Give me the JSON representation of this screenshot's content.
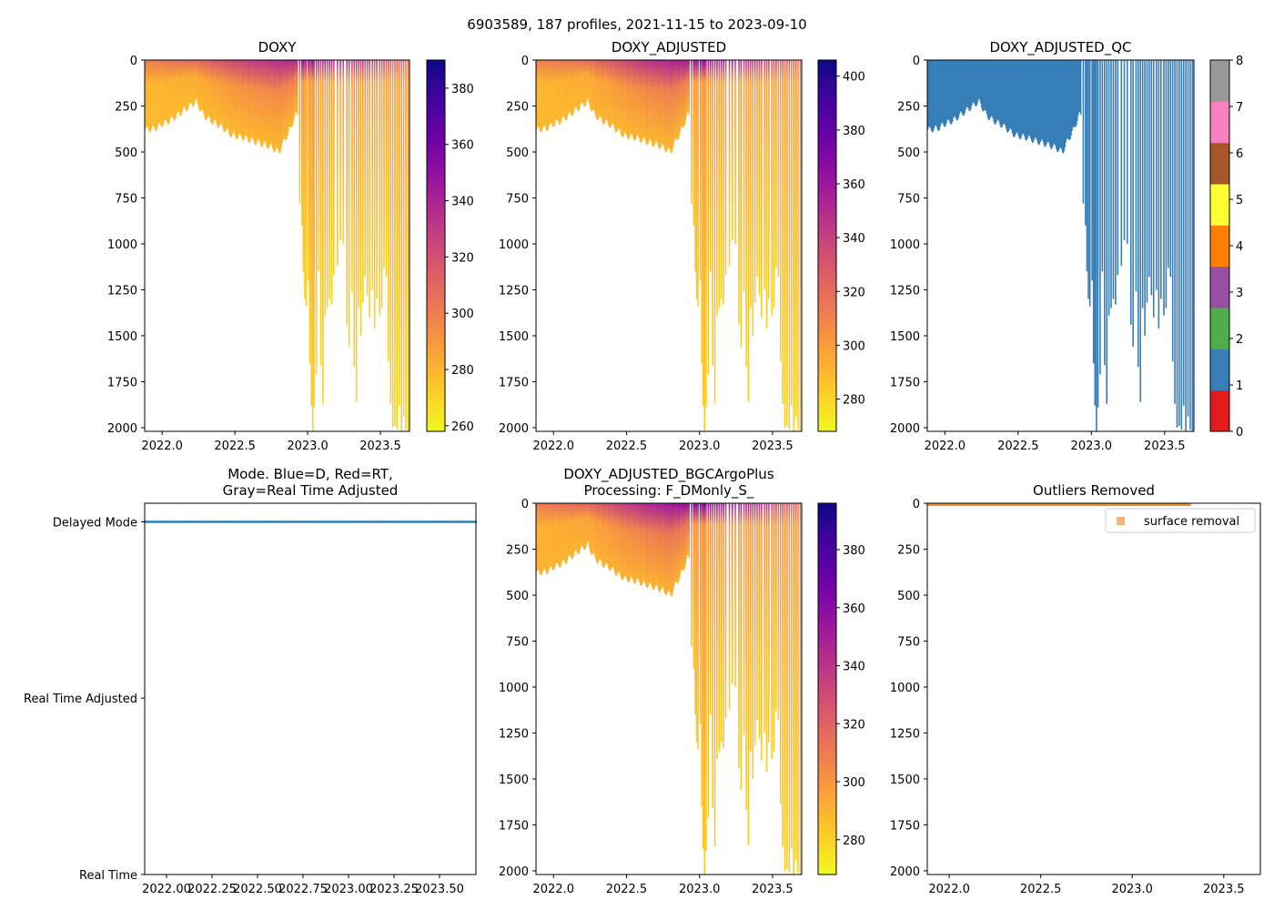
{
  "figure": {
    "suptitle": "6903589, 187 profiles, 2021-11-15 to 2023-09-10"
  },
  "colors": {
    "plasma": [
      "#0d0887",
      "#46039f",
      "#7201a8",
      "#9c179e",
      "#bd3786",
      "#d8576b",
      "#ed7953",
      "#fb9f3a",
      "#fdca26",
      "#f0f921"
    ],
    "qc_palette": [
      "#e41a1c",
      "#377eb8",
      "#4daf4a",
      "#984ea3",
      "#ff7f00",
      "#ffff33",
      "#a65628",
      "#f781bf",
      "#999999"
    ],
    "mode_marker": "#1f77b4",
    "outlier": "#f28e2b",
    "outlier_legend": "#f7b47a",
    "profile_fill": "#377eb8"
  },
  "chart_data": [
    {
      "id": "doxy",
      "type": "heatmap",
      "title": "DOXY",
      "xlim": [
        2021.88,
        2023.7
      ],
      "ylim": [
        2020,
        0
      ],
      "xticks": [
        "2022.0",
        "2022.5",
        "2023.0",
        "2023.5"
      ],
      "xtick_values": [
        2022.0,
        2022.5,
        2023.0,
        2023.5
      ],
      "yticks": [
        "0",
        "250",
        "500",
        "750",
        "1000",
        "1250",
        "1500",
        "1750",
        "2000"
      ],
      "ytick_values": [
        0,
        250,
        500,
        750,
        1000,
        1250,
        1500,
        1750,
        2000
      ],
      "colorbar": {
        "range": [
          258,
          390
        ],
        "ticks": [
          "260",
          "280",
          "300",
          "320",
          "340",
          "360",
          "380"
        ],
        "tick_values": [
          260,
          280,
          300,
          320,
          340,
          360,
          380
        ]
      },
      "surface_values": [
        300,
        310,
        330,
        340,
        330,
        300
      ],
      "deep_value": 270
    },
    {
      "id": "doxy_adjusted",
      "type": "heatmap",
      "title": "DOXY_ADJUSTED",
      "xlim": [
        2021.88,
        2023.7
      ],
      "ylim": [
        2020,
        0
      ],
      "xticks": [
        "2022.0",
        "2022.5",
        "2023.0",
        "2023.5"
      ],
      "xtick_values": [
        2022.0,
        2022.5,
        2023.0,
        2023.5
      ],
      "yticks": [
        "0",
        "250",
        "500",
        "750",
        "1000",
        "1250",
        "1500",
        "1750",
        "2000"
      ],
      "ytick_values": [
        0,
        250,
        500,
        750,
        1000,
        1250,
        1500,
        1750,
        2000
      ],
      "colorbar": {
        "range": [
          268,
          406
        ],
        "ticks": [
          "280",
          "300",
          "320",
          "340",
          "360",
          "380",
          "400"
        ],
        "tick_values": [
          280,
          300,
          320,
          340,
          360,
          380,
          400
        ]
      },
      "surface_values": [
        310,
        320,
        345,
        360,
        345,
        310
      ],
      "deep_value": 282
    },
    {
      "id": "doxy_adjusted_qc",
      "type": "heatmap",
      "title": "DOXY_ADJUSTED_QC",
      "xlim": [
        2021.88,
        2023.7
      ],
      "ylim": [
        2020,
        0
      ],
      "xticks": [
        "2022.0",
        "2022.5",
        "2023.0",
        "2023.5"
      ],
      "xtick_values": [
        2022.0,
        2022.5,
        2023.0,
        2023.5
      ],
      "yticks": [
        "0",
        "250",
        "500",
        "750",
        "1000",
        "1250",
        "1500",
        "1750",
        "2000"
      ],
      "ytick_values": [
        0,
        250,
        500,
        750,
        1000,
        1250,
        1500,
        1750,
        2000
      ],
      "colorbar": {
        "range": [
          0,
          8
        ],
        "ticks": [
          "0",
          "1",
          "2",
          "3",
          "4",
          "5",
          "6",
          "7",
          "8"
        ],
        "tick_values": [
          0,
          1,
          2,
          3,
          4,
          5,
          6,
          7,
          8
        ],
        "discrete": true
      },
      "qc_value": 1
    },
    {
      "id": "mode",
      "type": "scatter",
      "title": "Mode. Blue=D, Red=RT,",
      "title_line2": "Gray=Real Time Adjusted",
      "xlim": [
        2021.88,
        2023.7
      ],
      "ylim": [
        0,
        2
      ],
      "xticks": [
        "2022.00",
        "2022.25",
        "2022.50",
        "2022.75",
        "2023.00",
        "2023.25",
        "2023.50"
      ],
      "xtick_values": [
        2022.0,
        2022.25,
        2022.5,
        2022.75,
        2023.0,
        2023.25,
        2023.5
      ],
      "yticks": [
        "Real Time",
        "Real Time Adjusted",
        "Delayed Mode"
      ],
      "ytick_values": [
        0,
        1,
        2
      ],
      "series": [
        {
          "name": "Delayed Mode",
          "y": 2,
          "x_start": 2021.88,
          "x_end": 2023.7,
          "count": 187
        }
      ]
    },
    {
      "id": "bgcargoplus",
      "type": "heatmap",
      "title": "DOXY_ADJUSTED_BGCArgoPlus",
      "title_line2": "Processing: F_DMonly_S_",
      "xlim": [
        2021.88,
        2023.7
      ],
      "ylim": [
        2020,
        0
      ],
      "xticks": [
        "2022.0",
        "2022.5",
        "2023.0",
        "2023.5"
      ],
      "xtick_values": [
        2022.0,
        2022.5,
        2023.0,
        2023.5
      ],
      "yticks": [
        "0",
        "250",
        "500",
        "750",
        "1000",
        "1250",
        "1500",
        "1750",
        "2000"
      ],
      "ytick_values": [
        0,
        250,
        500,
        750,
        1000,
        1250,
        1500,
        1750,
        2000
      ],
      "colorbar": {
        "range": [
          268,
          396
        ],
        "ticks": [
          "280",
          "300",
          "320",
          "340",
          "360",
          "380"
        ],
        "tick_values": [
          280,
          300,
          320,
          340,
          360,
          380
        ]
      },
      "surface_values": [
        310,
        320,
        345,
        360,
        345,
        310
      ],
      "deep_value": 282
    },
    {
      "id": "outliers",
      "type": "scatter",
      "title": "Outliers Removed",
      "xlim": [
        2021.88,
        2023.7
      ],
      "ylim": [
        2020,
        0
      ],
      "xticks": [
        "2022.0",
        "2022.5",
        "2023.0",
        "2023.5"
      ],
      "xtick_values": [
        2022.0,
        2022.5,
        2023.0,
        2023.5
      ],
      "yticks": [
        "0",
        "250",
        "500",
        "750",
        "1000",
        "1250",
        "1500",
        "1750",
        "2000"
      ],
      "ytick_values": [
        0,
        250,
        500,
        750,
        1000,
        1250,
        1500,
        1750,
        2000
      ],
      "legend": {
        "label": "surface removal",
        "position": "upper right"
      },
      "series": [
        {
          "name": "surface removal",
          "x_start": 2021.88,
          "x_end": 2023.32,
          "depth_range": [
            0,
            15
          ]
        }
      ]
    }
  ],
  "profiles": {
    "early": {
      "x_start": 2021.88,
      "x_end": 2022.93,
      "max_depth_points": [
        [
          2021.88,
          380
        ],
        [
          2021.95,
          370
        ],
        [
          2022.0,
          345
        ],
        [
          2022.05,
          330
        ],
        [
          2022.1,
          300
        ],
        [
          2022.15,
          270
        ],
        [
          2022.2,
          240
        ],
        [
          2022.23,
          225
        ],
        [
          2022.28,
          300
        ],
        [
          2022.33,
          330
        ],
        [
          2022.38,
          350
        ],
        [
          2022.43,
          380
        ],
        [
          2022.48,
          410
        ],
        [
          2022.55,
          420
        ],
        [
          2022.62,
          440
        ],
        [
          2022.7,
          460
        ],
        [
          2022.75,
          475
        ],
        [
          2022.8,
          500
        ],
        [
          2022.82,
          460
        ],
        [
          2022.86,
          400
        ],
        [
          2022.88,
          370
        ],
        [
          2022.91,
          300
        ],
        [
          2022.93,
          300
        ]
      ]
    },
    "late": [
      [
        2022.94,
        780
      ],
      [
        2022.955,
        900
      ],
      [
        2022.965,
        1150
      ],
      [
        2022.975,
        1300
      ],
      [
        2022.985,
        1340
      ],
      [
        2023.0,
        1200
      ],
      [
        2023.01,
        1650
      ],
      [
        2023.02,
        1880
      ],
      [
        2023.03,
        2020
      ],
      [
        2023.04,
        1890
      ],
      [
        2023.055,
        1710
      ],
      [
        2023.07,
        1150
      ],
      [
        2023.085,
        1660
      ],
      [
        2023.1,
        1870
      ],
      [
        2023.115,
        1390
      ],
      [
        2023.13,
        1350
      ],
      [
        2023.145,
        1300
      ],
      [
        2023.16,
        1330
      ],
      [
        2023.175,
        1170
      ],
      [
        2023.2,
        1120
      ],
      [
        2023.22,
        980
      ],
      [
        2023.24,
        1000
      ],
      [
        2023.265,
        1440
      ],
      [
        2023.28,
        1560
      ],
      [
        2023.3,
        1260
      ],
      [
        2023.315,
        1670
      ],
      [
        2023.33,
        1860
      ],
      [
        2023.345,
        1350
      ],
      [
        2023.36,
        1500
      ],
      [
        2023.375,
        1320
      ],
      [
        2023.39,
        1180
      ],
      [
        2023.405,
        1280
      ],
      [
        2023.42,
        1400
      ],
      [
        2023.44,
        1250
      ],
      [
        2023.455,
        1460
      ],
      [
        2023.47,
        1300
      ],
      [
        2023.49,
        1390
      ],
      [
        2023.505,
        1350
      ],
      [
        2023.52,
        1130
      ],
      [
        2023.535,
        1180
      ],
      [
        2023.55,
        1640
      ],
      [
        2023.565,
        1870
      ],
      [
        2023.58,
        2000
      ],
      [
        2023.595,
        1990
      ],
      [
        2023.61,
        2010
      ],
      [
        2023.625,
        1880
      ],
      [
        2023.64,
        2020
      ],
      [
        2023.655,
        1940
      ],
      [
        2023.67,
        2010
      ],
      [
        2023.685,
        2020
      ]
    ]
  }
}
